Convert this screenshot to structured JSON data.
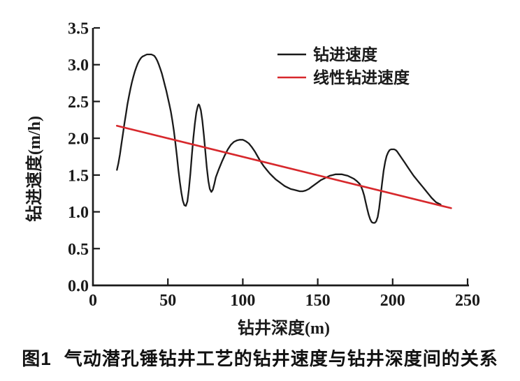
{
  "figure": {
    "caption_label": "图1",
    "caption_text": "气动潜孔锤钻井工艺的钻井速度与钻井深度间的关系"
  },
  "colors": {
    "axis": "#1a1a1a",
    "curve": "#1a1a1a",
    "trend": "#d7282c",
    "background": "#ffffff"
  },
  "chart_data": {
    "type": "line",
    "title": "",
    "xlabel": "钻井深度(m)",
    "ylabel": "钻进速度(m/h)",
    "xlim": [
      0,
      250
    ],
    "ylim": [
      0,
      3.5
    ],
    "xtick_labels": [
      "0",
      "50",
      "100",
      "150",
      "200",
      "250"
    ],
    "xtick_values": [
      0,
      50,
      100,
      150,
      200,
      250
    ],
    "ytick_labels": [
      "0.0",
      "0.5",
      "1.0",
      "1.5",
      "2.0",
      "2.5",
      "3.0",
      "3.5"
    ],
    "ytick_values": [
      0,
      0.5,
      1.0,
      1.5,
      2.0,
      2.5,
      3.0,
      3.5
    ],
    "grid": false,
    "legend_position": "top-right-inside",
    "series": [
      {
        "name": "钻进速度",
        "color": "#1a1a1a",
        "width": 2.3,
        "points": [
          [
            16,
            1.57
          ],
          [
            17,
            1.66
          ],
          [
            18,
            1.78
          ],
          [
            19,
            1.92
          ],
          [
            20,
            2.06
          ],
          [
            21,
            2.2
          ],
          [
            22,
            2.33
          ],
          [
            23,
            2.46
          ],
          [
            24,
            2.57
          ],
          [
            25,
            2.67
          ],
          [
            26,
            2.76
          ],
          [
            27,
            2.84
          ],
          [
            28,
            2.91
          ],
          [
            29,
            2.97
          ],
          [
            30,
            3.02
          ],
          [
            31,
            3.06
          ],
          [
            32,
            3.09
          ],
          [
            33,
            3.11
          ],
          [
            34,
            3.12
          ],
          [
            35,
            3.13
          ],
          [
            36,
            3.14
          ],
          [
            37,
            3.14
          ],
          [
            38,
            3.14
          ],
          [
            39,
            3.14
          ],
          [
            40,
            3.13
          ],
          [
            41,
            3.12
          ],
          [
            42,
            3.09
          ],
          [
            43,
            3.05
          ],
          [
            44,
            3.0
          ],
          [
            45,
            2.94
          ],
          [
            46,
            2.88
          ],
          [
            47,
            2.8
          ],
          [
            48,
            2.72
          ],
          [
            49,
            2.64
          ],
          [
            50,
            2.55
          ],
          [
            51,
            2.46
          ],
          [
            52,
            2.36
          ],
          [
            53,
            2.24
          ],
          [
            54,
            2.1
          ],
          [
            55,
            1.94
          ],
          [
            56,
            1.76
          ],
          [
            57,
            1.57
          ],
          [
            58,
            1.4
          ],
          [
            59,
            1.26
          ],
          [
            60,
            1.15
          ],
          [
            61,
            1.09
          ],
          [
            62,
            1.08
          ],
          [
            63,
            1.14
          ],
          [
            64,
            1.3
          ],
          [
            65,
            1.52
          ],
          [
            66,
            1.77
          ],
          [
            67,
            2.0
          ],
          [
            68,
            2.2
          ],
          [
            69,
            2.35
          ],
          [
            70,
            2.44
          ],
          [
            70.5,
            2.46
          ],
          [
            71,
            2.45
          ],
          [
            72,
            2.38
          ],
          [
            73,
            2.24
          ],
          [
            74,
            2.04
          ],
          [
            75,
            1.82
          ],
          [
            76,
            1.6
          ],
          [
            77,
            1.42
          ],
          [
            78,
            1.31
          ],
          [
            79,
            1.27
          ],
          [
            80,
            1.3
          ],
          [
            81,
            1.38
          ],
          [
            82,
            1.47
          ],
          [
            84,
            1.58
          ],
          [
            86,
            1.68
          ],
          [
            88,
            1.77
          ],
          [
            90,
            1.85
          ],
          [
            92,
            1.91
          ],
          [
            94,
            1.95
          ],
          [
            96,
            1.97
          ],
          [
            98,
            1.98
          ],
          [
            100,
            1.98
          ],
          [
            102,
            1.96
          ],
          [
            104,
            1.93
          ],
          [
            106,
            1.88
          ],
          [
            108,
            1.82
          ],
          [
            110,
            1.75
          ],
          [
            112,
            1.68
          ],
          [
            114,
            1.62
          ],
          [
            116,
            1.57
          ],
          [
            118,
            1.52
          ],
          [
            120,
            1.48
          ],
          [
            122,
            1.44
          ],
          [
            124,
            1.41
          ],
          [
            126,
            1.38
          ],
          [
            128,
            1.35
          ],
          [
            130,
            1.33
          ],
          [
            132,
            1.31
          ],
          [
            134,
            1.3
          ],
          [
            136,
            1.29
          ],
          [
            138,
            1.28
          ],
          [
            140,
            1.28
          ],
          [
            142,
            1.29
          ],
          [
            144,
            1.31
          ],
          [
            146,
            1.34
          ],
          [
            148,
            1.37
          ],
          [
            150,
            1.4
          ],
          [
            152,
            1.43
          ],
          [
            154,
            1.45
          ],
          [
            156,
            1.47
          ],
          [
            158,
            1.49
          ],
          [
            160,
            1.5
          ],
          [
            162,
            1.51
          ],
          [
            164,
            1.51
          ],
          [
            166,
            1.51
          ],
          [
            168,
            1.5
          ],
          [
            170,
            1.49
          ],
          [
            172,
            1.47
          ],
          [
            174,
            1.45
          ],
          [
            176,
            1.42
          ],
          [
            178,
            1.38
          ],
          [
            179,
            1.34
          ],
          [
            180,
            1.29
          ],
          [
            181,
            1.22
          ],
          [
            182,
            1.13
          ],
          [
            183,
            1.04
          ],
          [
            184,
            0.96
          ],
          [
            185,
            0.9
          ],
          [
            186,
            0.86
          ],
          [
            187,
            0.85
          ],
          [
            188,
            0.85
          ],
          [
            189,
            0.87
          ],
          [
            190,
            0.93
          ],
          [
            191,
            1.05
          ],
          [
            192,
            1.22
          ],
          [
            193,
            1.4
          ],
          [
            194,
            1.56
          ],
          [
            195,
            1.68
          ],
          [
            196,
            1.76
          ],
          [
            197,
            1.81
          ],
          [
            198,
            1.84
          ],
          [
            199,
            1.85
          ],
          [
            200,
            1.85
          ],
          [
            201,
            1.85
          ],
          [
            202,
            1.84
          ],
          [
            203,
            1.82
          ],
          [
            204,
            1.79
          ],
          [
            205,
            1.76
          ],
          [
            206,
            1.73
          ],
          [
            208,
            1.67
          ],
          [
            210,
            1.61
          ],
          [
            212,
            1.55
          ],
          [
            214,
            1.49
          ],
          [
            216,
            1.44
          ],
          [
            218,
            1.39
          ],
          [
            220,
            1.34
          ],
          [
            222,
            1.29
          ],
          [
            224,
            1.24
          ],
          [
            226,
            1.19
          ],
          [
            228,
            1.15
          ],
          [
            229,
            1.13
          ],
          [
            230,
            1.12
          ],
          [
            231,
            1.11
          ],
          [
            232,
            1.1
          ]
        ]
      },
      {
        "name": "线性钻进速度",
        "color": "#d7282c",
        "width": 2.6,
        "points": [
          [
            16,
            2.17
          ],
          [
            239,
            1.05
          ]
        ]
      }
    ]
  }
}
